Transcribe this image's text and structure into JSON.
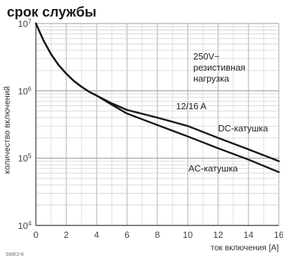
{
  "chart_data": {
    "type": "line",
    "title": "срок службы",
    "xlabel": "ток включения [A]",
    "ylabel": "количество включений",
    "xlim": [
      0,
      16
    ],
    "ylim_log10": [
      4,
      7
    ],
    "y_scale": "log",
    "x_ticks": [
      "0",
      "2",
      "4",
      "6",
      "8",
      "10",
      "12",
      "14",
      "16"
    ],
    "y_ticks": [
      {
        "base": "10",
        "exp": "7",
        "value": 10000000
      },
      {
        "base": "10",
        "exp": "6",
        "value": 1000000
      },
      {
        "base": "10",
        "exp": "5",
        "value": 100000
      },
      {
        "base": "10",
        "exp": "4",
        "value": 10000
      }
    ],
    "grid": true,
    "series": [
      {
        "name": "DC-катушка",
        "x": [
          0,
          0.5,
          1,
          1.5,
          2,
          2.5,
          3,
          3.5,
          4,
          5,
          6,
          8,
          10,
          12,
          14,
          16
        ],
        "y": [
          10000000,
          5600000,
          3500000,
          2400000,
          1800000,
          1400000,
          1150000,
          970000,
          850000,
          650000,
          520000,
          400000,
          300000,
          200000,
          135000,
          90000
        ]
      },
      {
        "name": "AC-катушка",
        "x": [
          0,
          0.5,
          1,
          1.5,
          2,
          2.5,
          3,
          3.5,
          4,
          5,
          6,
          8,
          10,
          12,
          14,
          16
        ],
        "y": [
          10000000,
          5600000,
          3500000,
          2400000,
          1800000,
          1400000,
          1150000,
          970000,
          850000,
          620000,
          460000,
          310000,
          210000,
          140000,
          95000,
          62000
        ]
      }
    ],
    "annotations": [
      "250V~",
      "резистивная",
      "нагрузка",
      "12/16 A"
    ],
    "figure_code": "SWE2-8"
  },
  "colors": {
    "grid": "#c8c8c8",
    "axis": "#555555",
    "curve": "#1a1a1a"
  }
}
